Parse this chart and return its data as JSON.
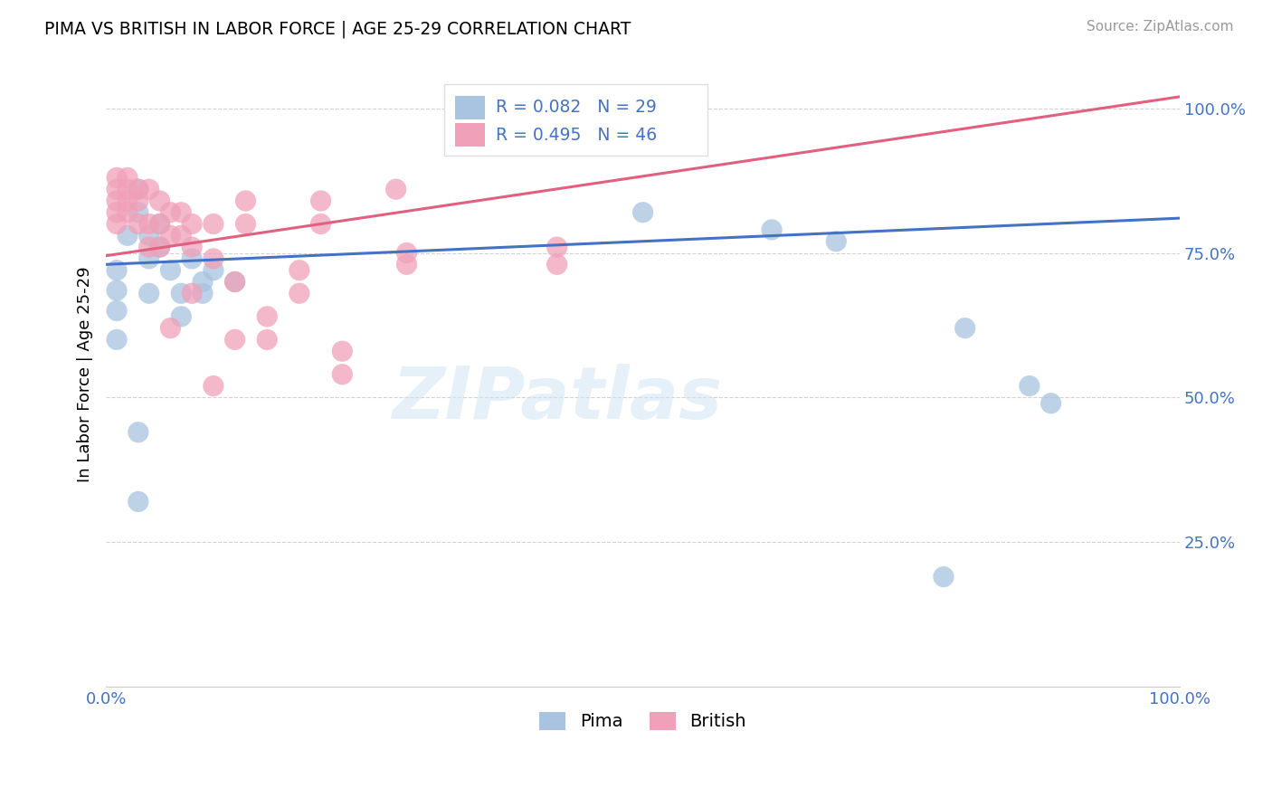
{
  "title": "PIMA VS BRITISH IN LABOR FORCE | AGE 25-29 CORRELATION CHART",
  "source": "Source: ZipAtlas.com",
  "ylabel": "In Labor Force | Age 25-29",
  "xlim": [
    0.0,
    1.0
  ],
  "ylim": [
    0.0,
    1.08
  ],
  "background_color": "#ffffff",
  "grid_color": "#cccccc",
  "pima_color": "#a8c4e0",
  "british_color": "#f0a0b8",
  "pima_line_color": "#4472c4",
  "british_line_color": "#e06080",
  "pima_R": 0.082,
  "pima_N": 29,
  "british_R": 0.495,
  "british_N": 46,
  "legend_color": "#4472c4",
  "watermark": "ZIPatlas",
  "pima_points": [
    [
      0.01,
      0.685
    ],
    [
      0.01,
      0.72
    ],
    [
      0.02,
      0.78
    ],
    [
      0.03,
      0.82
    ],
    [
      0.03,
      0.86
    ],
    [
      0.04,
      0.78
    ],
    [
      0.04,
      0.74
    ],
    [
      0.05,
      0.8
    ],
    [
      0.05,
      0.76
    ],
    [
      0.06,
      0.72
    ],
    [
      0.07,
      0.68
    ],
    [
      0.08,
      0.74
    ],
    [
      0.09,
      0.7
    ],
    [
      0.1,
      0.72
    ],
    [
      0.12,
      0.7
    ],
    [
      0.01,
      0.65
    ],
    [
      0.01,
      0.6
    ],
    [
      0.04,
      0.68
    ],
    [
      0.07,
      0.64
    ],
    [
      0.09,
      0.68
    ],
    [
      0.03,
      0.44
    ],
    [
      0.03,
      0.32
    ],
    [
      0.5,
      0.82
    ],
    [
      0.62,
      0.79
    ],
    [
      0.68,
      0.77
    ],
    [
      0.8,
      0.62
    ],
    [
      0.86,
      0.52
    ],
    [
      0.88,
      0.49
    ],
    [
      0.78,
      0.19
    ]
  ],
  "british_points": [
    [
      0.01,
      0.88
    ],
    [
      0.01,
      0.86
    ],
    [
      0.01,
      0.84
    ],
    [
      0.01,
      0.82
    ],
    [
      0.01,
      0.8
    ],
    [
      0.02,
      0.88
    ],
    [
      0.02,
      0.86
    ],
    [
      0.02,
      0.84
    ],
    [
      0.02,
      0.82
    ],
    [
      0.03,
      0.86
    ],
    [
      0.03,
      0.84
    ],
    [
      0.03,
      0.8
    ],
    [
      0.04,
      0.86
    ],
    [
      0.04,
      0.8
    ],
    [
      0.04,
      0.76
    ],
    [
      0.05,
      0.84
    ],
    [
      0.05,
      0.8
    ],
    [
      0.05,
      0.76
    ],
    [
      0.06,
      0.82
    ],
    [
      0.06,
      0.78
    ],
    [
      0.07,
      0.82
    ],
    [
      0.07,
      0.78
    ],
    [
      0.08,
      0.8
    ],
    [
      0.08,
      0.76
    ],
    [
      0.1,
      0.8
    ],
    [
      0.13,
      0.84
    ],
    [
      0.13,
      0.8
    ],
    [
      0.2,
      0.84
    ],
    [
      0.2,
      0.8
    ],
    [
      0.27,
      0.86
    ],
    [
      0.1,
      0.74
    ],
    [
      0.12,
      0.7
    ],
    [
      0.15,
      0.64
    ],
    [
      0.15,
      0.6
    ],
    [
      0.22,
      0.58
    ],
    [
      0.22,
      0.54
    ],
    [
      0.12,
      0.6
    ],
    [
      0.18,
      0.72
    ],
    [
      0.18,
      0.68
    ],
    [
      0.08,
      0.68
    ],
    [
      0.06,
      0.62
    ],
    [
      0.1,
      0.52
    ],
    [
      0.28,
      0.75
    ],
    [
      0.28,
      0.73
    ],
    [
      0.42,
      0.76
    ],
    [
      0.42,
      0.73
    ]
  ]
}
